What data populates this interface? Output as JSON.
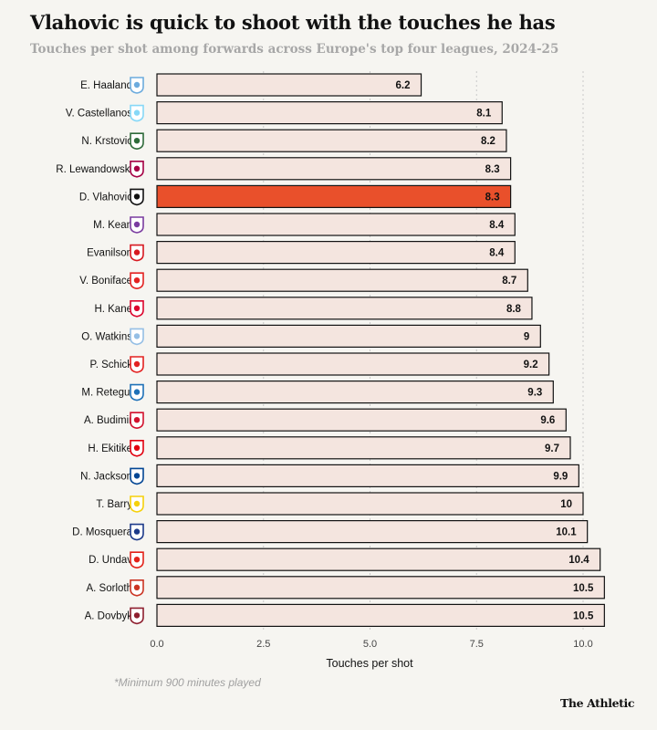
{
  "title": "Vlahovic is quick to shoot with the touches he has",
  "subtitle": "Touches per shot among forwards across Europe's top four leagues, 2024-25",
  "footnote": "*Minimum 900 minutes played",
  "brand": "The Athletic",
  "colors": {
    "bar_default": "#f4e5df",
    "bar_highlight": "#e9502b",
    "bar_stroke": "#121212",
    "grid": "#c9c9c9",
    "background": "#f6f5f1"
  },
  "chart_data": {
    "type": "bar",
    "orientation": "horizontal",
    "xlabel": "Touches per shot",
    "xlim": [
      0,
      10.5
    ],
    "xticks": [
      "0.0",
      "2.5",
      "5.0",
      "7.5",
      "10.0"
    ],
    "xtick_values": [
      0,
      2.5,
      5,
      7.5,
      10
    ],
    "grid": "vertical dotted",
    "highlight": "D. Vlahovic",
    "categories": [
      "E. Haaland",
      "V. Castellanos",
      "N. Krstovic",
      "R. Lewandowski",
      "D. Vlahovic",
      "M. Kean",
      "Evanilson",
      "V. Boniface",
      "H. Kane",
      "O. Watkins",
      "P. Schick",
      "M. Retegui",
      "A. Budimir",
      "H. Ekitike",
      "N. Jackson",
      "T. Barry",
      "D. Mosquera",
      "D. Undav",
      "A. Sorloth",
      "A. Dovbyk"
    ],
    "values": [
      6.2,
      8.1,
      8.2,
      8.3,
      8.3,
      8.4,
      8.4,
      8.7,
      8.8,
      9,
      9.2,
      9.3,
      9.6,
      9.7,
      9.9,
      10,
      10.1,
      10.4,
      10.5,
      10.5
    ],
    "value_labels": [
      "6.2",
      "8.1",
      "8.2",
      "8.3",
      "8.3",
      "8.4",
      "8.4",
      "8.7",
      "8.8",
      "9",
      "9.2",
      "9.3",
      "9.6",
      "9.7",
      "9.9",
      "10",
      "10.1",
      "10.4",
      "10.5",
      "10.5"
    ],
    "club_badges": [
      {
        "icon": "manchester-city-crest",
        "color": "#6cabdd"
      },
      {
        "icon": "lazio-crest",
        "color": "#87d8f7"
      },
      {
        "icon": "lecce-crest",
        "color": "#2e6b3a"
      },
      {
        "icon": "barcelona-crest",
        "color": "#a50044"
      },
      {
        "icon": "juventus-crest",
        "color": "#111111"
      },
      {
        "icon": "fiorentina-crest",
        "color": "#7a3ca0"
      },
      {
        "icon": "bournemouth-crest",
        "color": "#d71920"
      },
      {
        "icon": "leverkusen-crest",
        "color": "#e32221"
      },
      {
        "icon": "bayern-munich-crest",
        "color": "#dc052d"
      },
      {
        "icon": "aston-villa-crest",
        "color": "#95bfe5"
      },
      {
        "icon": "leverkusen-crest",
        "color": "#e32221"
      },
      {
        "icon": "atalanta-crest",
        "color": "#1e71b8"
      },
      {
        "icon": "osasuna-crest",
        "color": "#d2122e"
      },
      {
        "icon": "eintracht-frankfurt-crest",
        "color": "#e1000f"
      },
      {
        "icon": "chelsea-crest",
        "color": "#034694"
      },
      {
        "icon": "villarreal-crest",
        "color": "#f5d10b"
      },
      {
        "icon": "verona-crest",
        "color": "#1c3a8a"
      },
      {
        "icon": "stuttgart-crest",
        "color": "#e32219"
      },
      {
        "icon": "atletico-madrid-crest",
        "color": "#cb3524"
      },
      {
        "icon": "roma-crest",
        "color": "#8e1f2f"
      }
    ]
  }
}
